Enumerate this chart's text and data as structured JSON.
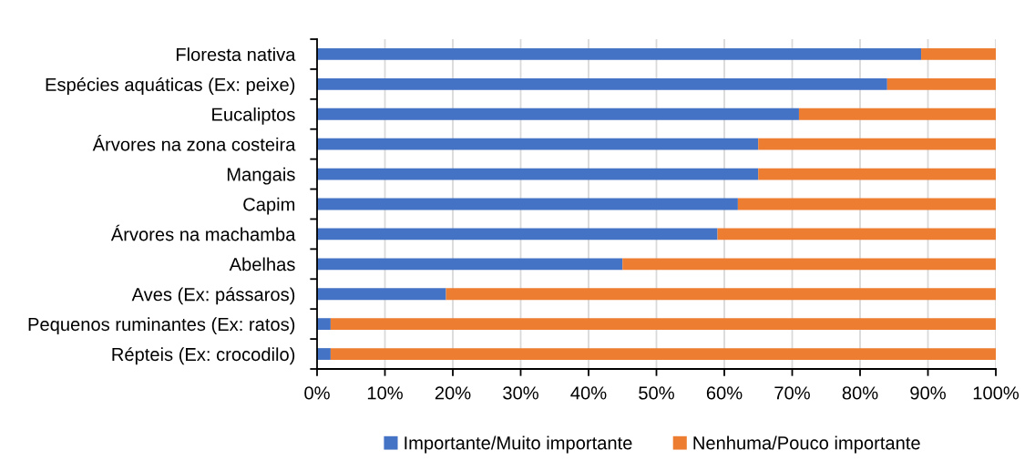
{
  "chart_data": {
    "type": "bar",
    "orientation": "horizontal",
    "stacked": true,
    "categories": [
      "Floresta nativa",
      "Espécies aquáticas (Ex: peixe)",
      "Eucaliptos",
      "Árvores na zona costeira",
      "Mangais",
      "Capim",
      "Árvores na machamba",
      "Abelhas",
      "Aves (Ex: pássaros)",
      "Pequenos ruminantes (Ex: ratos)",
      "Répteis (Ex: crocodilo)"
    ],
    "series": [
      {
        "name": "Importante/Muito importante",
        "color": "#4472c4",
        "values": [
          89,
          84,
          71,
          65,
          65,
          62,
          59,
          45,
          19,
          2,
          2
        ]
      },
      {
        "name": "Nenhuma/Pouco importante",
        "color": "#ed7d31",
        "values": [
          11,
          16,
          29,
          35,
          35,
          38,
          41,
          55,
          81,
          98,
          98
        ]
      }
    ],
    "xlim": [
      0,
      100
    ],
    "xticks": [
      {
        "value": 0,
        "label": "0%"
      },
      {
        "value": 10,
        "label": "10%"
      },
      {
        "value": 20,
        "label": "20%"
      },
      {
        "value": 30,
        "label": "30%"
      },
      {
        "value": 40,
        "label": "40%"
      },
      {
        "value": 50,
        "label": "50%"
      },
      {
        "value": 60,
        "label": "60%"
      },
      {
        "value": 70,
        "label": "70%"
      },
      {
        "value": 80,
        "label": "80%"
      },
      {
        "value": 90,
        "label": "90%"
      },
      {
        "value": 100,
        "label": "100%"
      }
    ],
    "grid": "x",
    "legend": "bottom"
  }
}
